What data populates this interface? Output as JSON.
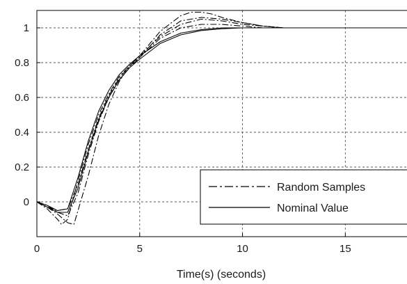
{
  "chart_data": {
    "type": "line",
    "title": "",
    "xlabel": "Time(s) (seconds)",
    "ylabel": "",
    "xlim": [
      0,
      18
    ],
    "ylim": [
      -0.2,
      1.1
    ],
    "grid": true,
    "x_ticks": [
      0,
      5,
      10,
      15
    ],
    "x_tick_labels": [
      "0",
      "5",
      "10",
      "15"
    ],
    "y_ticks": [
      0,
      0.2,
      0.4,
      0.6,
      0.8,
      1
    ],
    "y_tick_labels": [
      "0",
      "0.2",
      "0.4",
      "0.6",
      "0.8",
      "1"
    ],
    "legend": {
      "position": "bottom-right",
      "entries": [
        {
          "label": "Random Samples",
          "style": "dash-dot"
        },
        {
          "label": "Nominal Value",
          "style": "solid"
        }
      ]
    },
    "series": [
      {
        "name": "Random Samples",
        "style": "dash-dot",
        "x": [
          0,
          0.5,
          1.0,
          1.2,
          1.5,
          2,
          2.5,
          3,
          3.5,
          4,
          4.5,
          5,
          6,
          7,
          7.5,
          8,
          8.5,
          9,
          10,
          11,
          12,
          13,
          14,
          15,
          16,
          17,
          18
        ],
        "y": [
          0,
          -0.04,
          -0.1,
          -0.13,
          -0.1,
          0.12,
          0.33,
          0.5,
          0.62,
          0.72,
          0.78,
          0.84,
          0.98,
          1.07,
          1.09,
          1.09,
          1.08,
          1.06,
          1.03,
          1.01,
          1.0,
          1.0,
          1.0,
          1.0,
          1.0,
          1.0,
          1.0
        ]
      },
      {
        "name": "Random Samples",
        "style": "dash-dot",
        "x": [
          0,
          0.5,
          1.0,
          1.5,
          2,
          2.5,
          3,
          3.5,
          4,
          4.5,
          5,
          6,
          7,
          8,
          9,
          10,
          11,
          12,
          13,
          14,
          15,
          16,
          17,
          18
        ],
        "y": [
          0,
          -0.02,
          -0.06,
          -0.08,
          0.05,
          0.27,
          0.46,
          0.6,
          0.7,
          0.77,
          0.83,
          0.96,
          1.04,
          1.06,
          1.05,
          1.03,
          1.01,
          1.0,
          1.0,
          1.0,
          1.0,
          1.0,
          1.0,
          1.0
        ]
      },
      {
        "name": "Random Samples",
        "style": "dash-dot",
        "x": [
          0,
          0.5,
          1.0,
          1.5,
          1.8,
          2,
          2.5,
          3,
          3.5,
          4,
          4.5,
          5,
          6,
          7,
          8,
          9,
          10,
          11,
          12,
          13,
          14,
          15,
          16,
          17,
          18
        ],
        "y": [
          0,
          -0.03,
          -0.07,
          -0.12,
          -0.13,
          -0.05,
          0.15,
          0.38,
          0.56,
          0.69,
          0.78,
          0.84,
          0.95,
          1.02,
          1.05,
          1.04,
          1.02,
          1.01,
          1.0,
          1.0,
          1.0,
          1.0,
          1.0,
          1.0,
          1.0
        ]
      },
      {
        "name": "Random Samples",
        "style": "dash-dot",
        "x": [
          0,
          0.5,
          1.0,
          1.5,
          2,
          2.5,
          3,
          3.5,
          4,
          4.5,
          5,
          6,
          7,
          8,
          9,
          10,
          11,
          12,
          13,
          14,
          15,
          16,
          17,
          18
        ],
        "y": [
          0,
          -0.03,
          -0.05,
          -0.04,
          0.1,
          0.3,
          0.48,
          0.61,
          0.71,
          0.78,
          0.83,
          0.94,
          1.0,
          1.02,
          1.02,
          1.01,
          1.0,
          1.0,
          1.0,
          1.0,
          1.0,
          1.0,
          1.0,
          1.0
        ]
      },
      {
        "name": "Nominal Value",
        "style": "solid",
        "x": [
          0,
          0.5,
          1.0,
          1.5,
          2,
          2.5,
          3,
          3.5,
          4,
          4.5,
          5,
          6,
          7,
          8,
          9,
          10,
          11,
          12,
          13,
          14,
          15,
          16,
          17,
          18
        ],
        "y": [
          0,
          -0.02,
          -0.05,
          -0.04,
          0.14,
          0.35,
          0.52,
          0.64,
          0.73,
          0.79,
          0.84,
          0.92,
          0.97,
          0.99,
          1.0,
          1.0,
          1.0,
          1.0,
          1.0,
          1.0,
          1.0,
          1.0,
          1.0,
          1.0
        ]
      },
      {
        "name": "Nominal Value",
        "style": "solid",
        "x": [
          0,
          0.5,
          1.0,
          1.5,
          2,
          2.5,
          3,
          3.5,
          4,
          4.5,
          5,
          6,
          7,
          8,
          9,
          10,
          11,
          12,
          13,
          14,
          15,
          16,
          17,
          18
        ],
        "y": [
          0,
          -0.03,
          -0.06,
          -0.06,
          0.08,
          0.29,
          0.47,
          0.6,
          0.7,
          0.77,
          0.82,
          0.91,
          0.96,
          0.985,
          0.995,
          1.0,
          1.0,
          1.0,
          1.0,
          1.0,
          1.0,
          1.0,
          1.0,
          1.0
        ]
      }
    ]
  }
}
